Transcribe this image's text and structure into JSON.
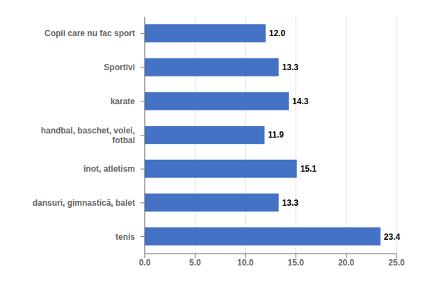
{
  "chart_data": {
    "type": "bar",
    "orientation": "horizontal",
    "categories": [
      "tenis",
      "dansuri, gimnastică, balet",
      "înot, atletism",
      "handbal, baschet, volei,\nfotbal",
      "karate",
      "Sportivi",
      "Copii care nu fac sport"
    ],
    "values": [
      23.4,
      13.3,
      15.1,
      11.9,
      14.3,
      13.3,
      12.0
    ],
    "value_labels": [
      "23.4",
      "13.3",
      "15.1",
      "11.9",
      "14.3",
      "13.3",
      "12.0"
    ],
    "data_labels": true,
    "color": "#4472C4",
    "xlim": [
      0,
      25.0
    ],
    "xticks": [
      {
        "value": 0,
        "label": "0.0"
      },
      {
        "value": 5,
        "label": "5.0"
      },
      {
        "value": 10,
        "label": "10.0"
      },
      {
        "value": 15,
        "label": "15.0"
      },
      {
        "value": 20,
        "label": "20.0"
      },
      {
        "value": 25,
        "label": "25.0"
      }
    ],
    "grid": true
  }
}
